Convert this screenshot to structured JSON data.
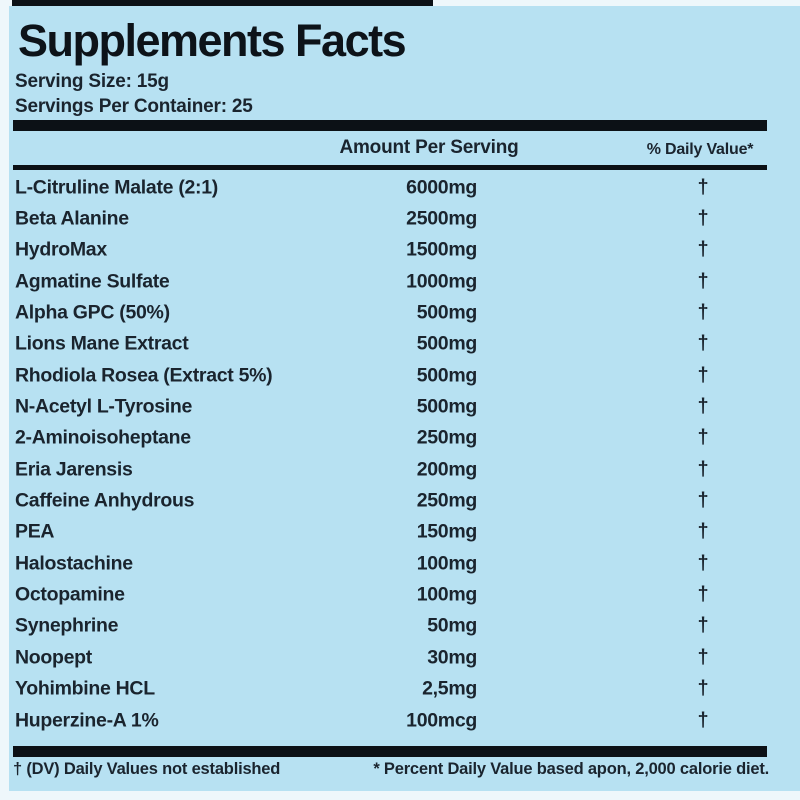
{
  "label": {
    "title": "Supplements Facts",
    "serving_size": "Serving Size: 15g",
    "servings_per_container": "Servings Per Container: 25",
    "columns": {
      "amount": "Amount Per Serving",
      "daily_value": "% Daily Value*"
    },
    "rows": [
      {
        "name": "L-Citruline Malate (2:1)",
        "amount": "6000mg",
        "dv": "†"
      },
      {
        "name": "Beta Alanine",
        "amount": "2500mg",
        "dv": "†"
      },
      {
        "name": "HydroMax",
        "amount": "1500mg",
        "dv": "†"
      },
      {
        "name": "Agmatine Sulfate",
        "amount": "1000mg",
        "dv": "†"
      },
      {
        "name": "Alpha GPC (50%)",
        "amount": "500mg",
        "dv": "†"
      },
      {
        "name": "Lions Mane Extract",
        "amount": "500mg",
        "dv": "†"
      },
      {
        "name": "Rhodiola Rosea (Extract 5%)",
        "amount": "500mg",
        "dv": "†"
      },
      {
        "name": "N-Acetyl L-Tyrosine",
        "amount": "500mg",
        "dv": "†"
      },
      {
        "name": "2-Aminoisoheptane",
        "amount": "250mg",
        "dv": "†"
      },
      {
        "name": "Eria Jarensis",
        "amount": "200mg",
        "dv": "†"
      },
      {
        "name": "Caffeine Anhydrous",
        "amount": "250mg",
        "dv": "†"
      },
      {
        "name": "PEA",
        "amount": "150mg",
        "dv": "†"
      },
      {
        "name": "Halostachine",
        "amount": "100mg",
        "dv": "†"
      },
      {
        "name": "Octopamine",
        "amount": "100mg",
        "dv": "†"
      },
      {
        "name": "Synephrine",
        "amount": "50mg",
        "dv": "†"
      },
      {
        "name": "Noopept",
        "amount": "30mg",
        "dv": "†"
      },
      {
        "name": "Yohimbine HCL",
        "amount": "2,5mg",
        "dv": "†"
      },
      {
        "name": "Huperzine-A 1%",
        "amount": "100mcg",
        "dv": "†"
      }
    ],
    "footnotes": {
      "dagger": "† (DV) Daily Values not established",
      "asterisk": "* Percent Daily Value based apon, 2,000 calorie diet."
    },
    "colors": {
      "background": "#b7e1f2",
      "bar": "#0c1116",
      "text": "#1a242e"
    }
  }
}
